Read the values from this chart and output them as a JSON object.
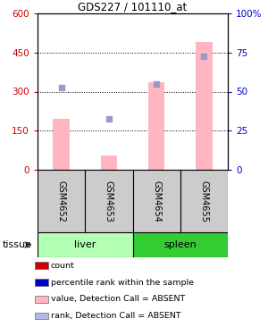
{
  "title": "GDS227 / 101110_at",
  "samples": [
    "GSM4652",
    "GSM4653",
    "GSM4654",
    "GSM4655"
  ],
  "tissue_groups": [
    {
      "label": "liver",
      "color": "#b3ffb3"
    },
    {
      "label": "spleen",
      "color": "#33cc33"
    }
  ],
  "bar_values_pink": [
    195,
    55,
    335,
    490
  ],
  "dot_values_blue": [
    315,
    195,
    330,
    435
  ],
  "left_ylim": [
    0,
    600
  ],
  "right_ylim": [
    0,
    100
  ],
  "left_yticks": [
    0,
    150,
    300,
    450,
    600
  ],
  "right_yticks": [
    0,
    25,
    50,
    75,
    100
  ],
  "right_yticklabels": [
    "0",
    "25",
    "50",
    "75",
    "100%"
  ],
  "left_ycolor": "#cc0000",
  "right_ycolor": "#0000cc",
  "grid_yticks": [
    150,
    300,
    450
  ],
  "bar_color_pink": "#ffb6c1",
  "dot_color_blue": "#9999cc",
  "sample_box_color": "#cccccc",
  "legend_items": [
    {
      "color": "#cc0000",
      "label": "count"
    },
    {
      "color": "#0000cc",
      "label": "percentile rank within the sample"
    },
    {
      "color": "#ffb6c1",
      "label": "value, Detection Call = ABSENT"
    },
    {
      "color": "#b0b8e8",
      "label": "rank, Detection Call = ABSENT"
    }
  ],
  "tissue_label": "tissue"
}
